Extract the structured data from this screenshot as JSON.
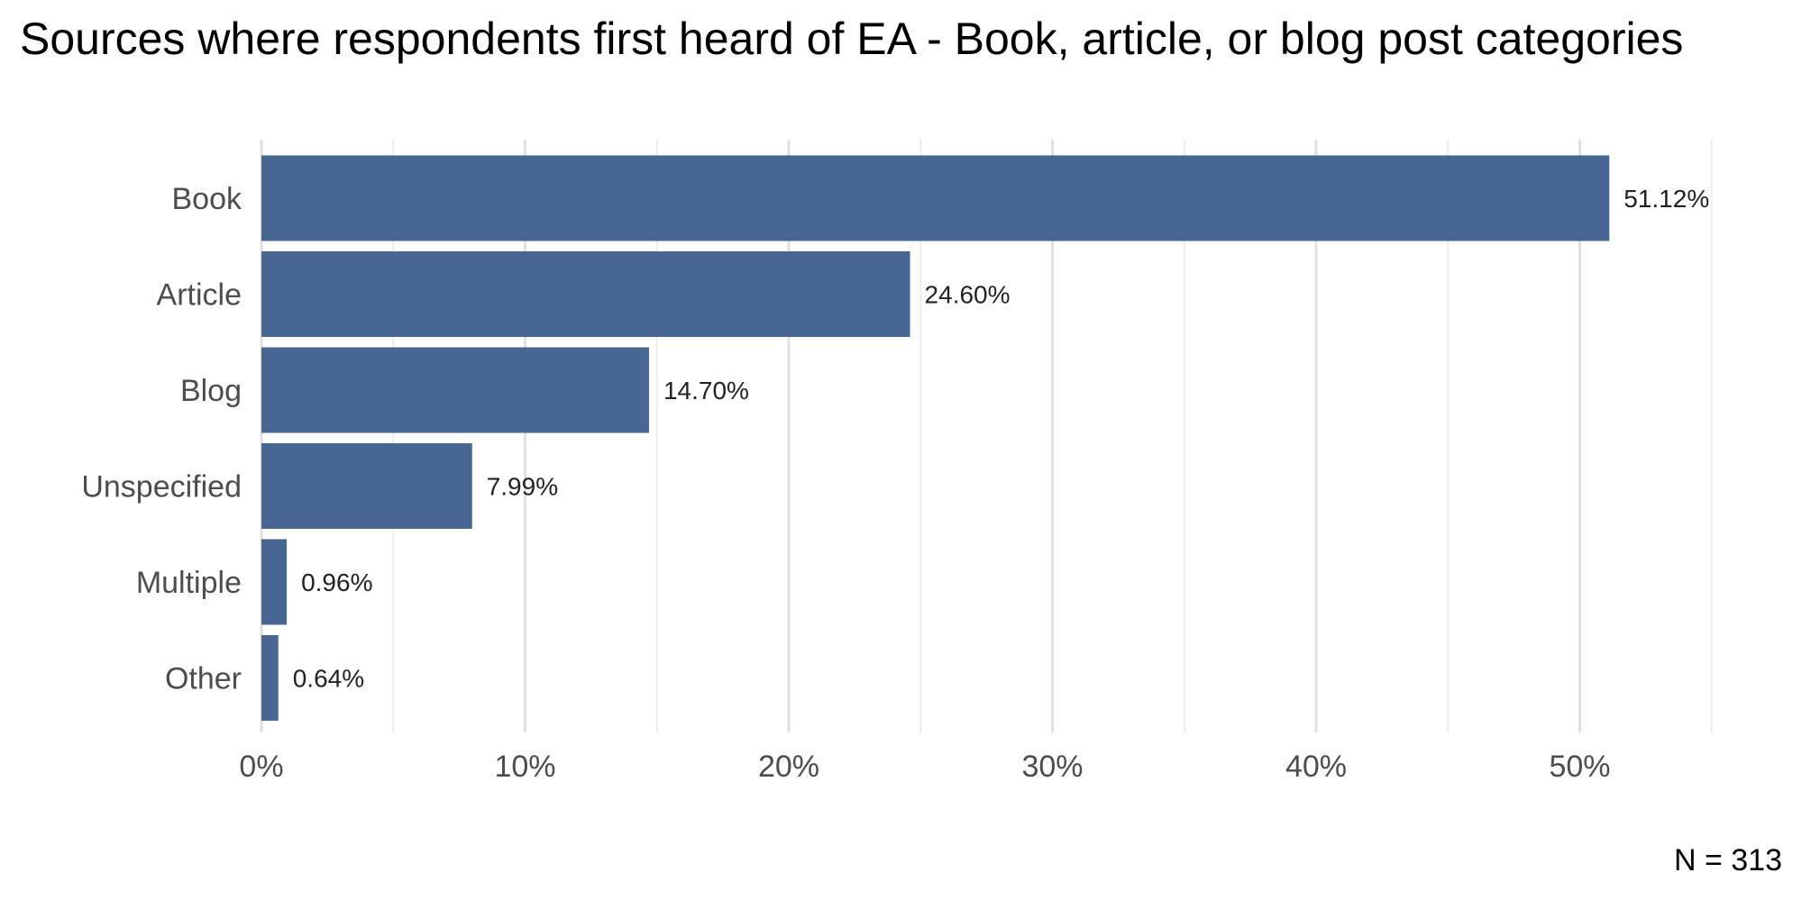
{
  "chart_data": {
    "type": "bar",
    "orientation": "horizontal",
    "title": "Sources where respondents first heard of EA - Book, article, or blog post categories",
    "caption": "N = 313",
    "categories": [
      "Book",
      "Article",
      "Blog",
      "Unspecified",
      "Multiple",
      "Other"
    ],
    "values": [
      51.12,
      24.6,
      14.7,
      7.99,
      0.96,
      0.64
    ],
    "value_labels": [
      "51.12%",
      "24.60%",
      "14.70%",
      "7.99%",
      "0.96%",
      "0.64%"
    ],
    "x_ticks": [
      0,
      10,
      20,
      30,
      40,
      50
    ],
    "x_tick_labels": [
      "0%",
      "10%",
      "20%",
      "30%",
      "40%",
      "50%"
    ],
    "xlim": [
      0,
      55
    ],
    "xlabel": "",
    "ylabel": "",
    "grid": true,
    "legend": "none",
    "bar_color": "#3d5f8c"
  }
}
